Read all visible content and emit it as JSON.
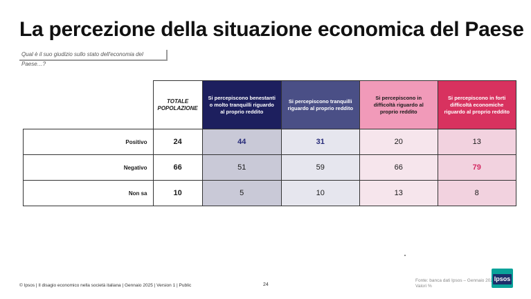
{
  "title": "La percezione della situazione economica del Paese",
  "question": "Qual è il suo giudizio sullo stato dell'economia del Paese…?",
  "table": {
    "headers": {
      "total": "TOTALE POPOLAZIONE",
      "col1": "Si percepiscono benestanti o molto tranquilli riguardo al proprio reddito",
      "col2": "Si percepiscono tranquilli riguardo al proprio reddito",
      "col3": "Si percepiscono in difficoltà riguardo al proprio reddito",
      "col4": "Si percepiscono in forti difficoltà economiche riguardo al proprio reddito"
    },
    "rows": [
      {
        "label": "Positivo",
        "total": "24",
        "c1": "44",
        "c2": "31",
        "c3": "20",
        "c4": "13"
      },
      {
        "label": "Negativo",
        "total": "66",
        "c1": "51",
        "c2": "59",
        "c3": "66",
        "c4": "79"
      },
      {
        "label": "Non sa",
        "total": "10",
        "c1": "5",
        "c2": "10",
        "c3": "13",
        "c4": "8"
      }
    ]
  },
  "footer": {
    "left": "© Ipsos | Il disagio economico nella società italiana | Gennaio 2025 | Version 1 | Public",
    "page": "24",
    "source_line1": "Fonte: banca dati Ipsos – Gennaio 2025",
    "source_line2": "Valori %"
  },
  "logo": {
    "text": "Ipsos"
  },
  "colors": {
    "header_col1": "#1d1f5e",
    "header_col2": "#4a4f86",
    "header_col3": "#f19ab9",
    "header_col4": "#d8325f",
    "highlight_blue": "#262a78",
    "highlight_pink": "#d42a63",
    "logo_green": "#0aa39a",
    "logo_navy": "#1c2f6b"
  }
}
